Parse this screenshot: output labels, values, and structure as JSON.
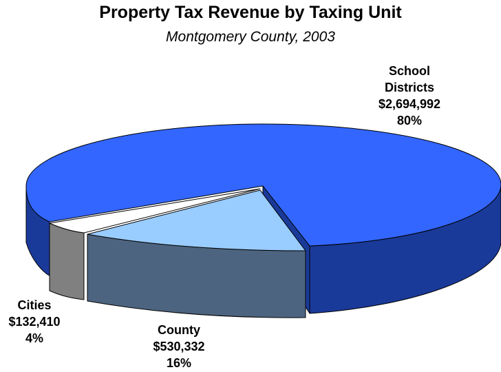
{
  "chart_data": {
    "type": "pie",
    "title": "Property Tax Revenue by Taxing Unit",
    "subtitle": "Montgomery County, 2003",
    "slices": [
      {
        "name_lines": [
          "School",
          "Districts"
        ],
        "value": 2694992,
        "value_label": "$2,694,992",
        "percent": 80,
        "percent_label": "80%",
        "top_color": "#3366ff",
        "side_color": "#1a3a99"
      },
      {
        "name_lines": [
          "County"
        ],
        "value": 530332,
        "value_label": "$530,332",
        "percent": 16,
        "percent_label": "16%",
        "top_color": "#99ccff",
        "side_color": "#4d6480"
      },
      {
        "name_lines": [
          "Cities"
        ],
        "value": 132410,
        "value_label": "$132,410",
        "percent": 4,
        "percent_label": "4%",
        "top_color": "#ffffff",
        "side_color": "#808080"
      }
    ]
  }
}
